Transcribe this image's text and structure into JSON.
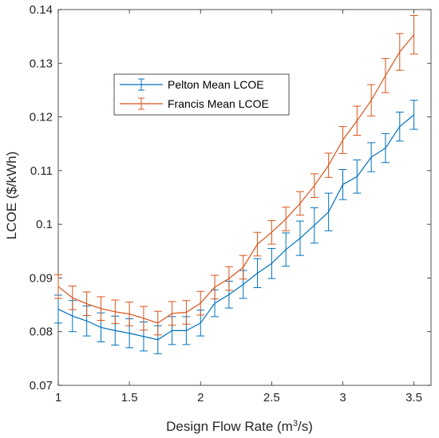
{
  "chart_data": {
    "type": "line",
    "xlabel_main": "Design Flow Rate (m",
    "xlabel_sup": "3",
    "xlabel_tail": "/s)",
    "ylabel": "LCOE ($/kWh)",
    "xlim": [
      1,
      3.62
    ],
    "ylim": [
      0.07,
      0.14
    ],
    "xticks": [
      1,
      1.5,
      2,
      2.5,
      3,
      3.5
    ],
    "xtick_labels": [
      "1",
      "1.5",
      "2",
      "2.5",
      "3",
      "3.5"
    ],
    "yticks": [
      0.07,
      0.08,
      0.09,
      0.1,
      0.11,
      0.12,
      0.13,
      0.14
    ],
    "ytick_labels": [
      "0.07",
      "0.08",
      "0.09",
      "0.1",
      "0.11",
      "0.12",
      "0.13",
      "0.14"
    ],
    "legend_position": "upper-left-center",
    "x": [
      1.0,
      1.1,
      1.2,
      1.3,
      1.4,
      1.5,
      1.6,
      1.7,
      1.8,
      1.9,
      2.0,
      2.1,
      2.2,
      2.3,
      2.4,
      2.5,
      2.6,
      2.7,
      2.8,
      2.9,
      3.0,
      3.1,
      3.2,
      3.3,
      3.4,
      3.5
    ],
    "series": [
      {
        "name": "Pelton Mean LCOE",
        "color": "#0072BD",
        "values": [
          0.0842,
          0.0829,
          0.082,
          0.0808,
          0.0802,
          0.0797,
          0.0791,
          0.0785,
          0.0802,
          0.0802,
          0.0816,
          0.0853,
          0.0869,
          0.0888,
          0.0909,
          0.0927,
          0.0953,
          0.0974,
          0.0998,
          0.1023,
          0.1074,
          0.1089,
          0.1125,
          0.1142,
          0.1182,
          0.1204
        ],
        "errors": [
          0.0026,
          0.0029,
          0.0028,
          0.0027,
          0.0027,
          0.0027,
          0.0027,
          0.0026,
          0.0026,
          0.0026,
          0.0024,
          0.0025,
          0.0025,
          0.0026,
          0.0027,
          0.0028,
          0.0031,
          0.0032,
          0.0033,
          0.0035,
          0.0028,
          0.0031,
          0.0027,
          0.0027,
          0.0027,
          0.0027
        ]
      },
      {
        "name": "Francis Mean LCOE",
        "color": "#D95319",
        "values": [
          0.0884,
          0.0863,
          0.0852,
          0.0843,
          0.0837,
          0.0833,
          0.0825,
          0.0816,
          0.0834,
          0.0836,
          0.0853,
          0.0883,
          0.0899,
          0.092,
          0.0963,
          0.0985,
          0.101,
          0.1039,
          0.1072,
          0.111,
          0.1157,
          0.1193,
          0.1231,
          0.1277,
          0.1321,
          0.1353
        ]
      }
    ]
  }
}
